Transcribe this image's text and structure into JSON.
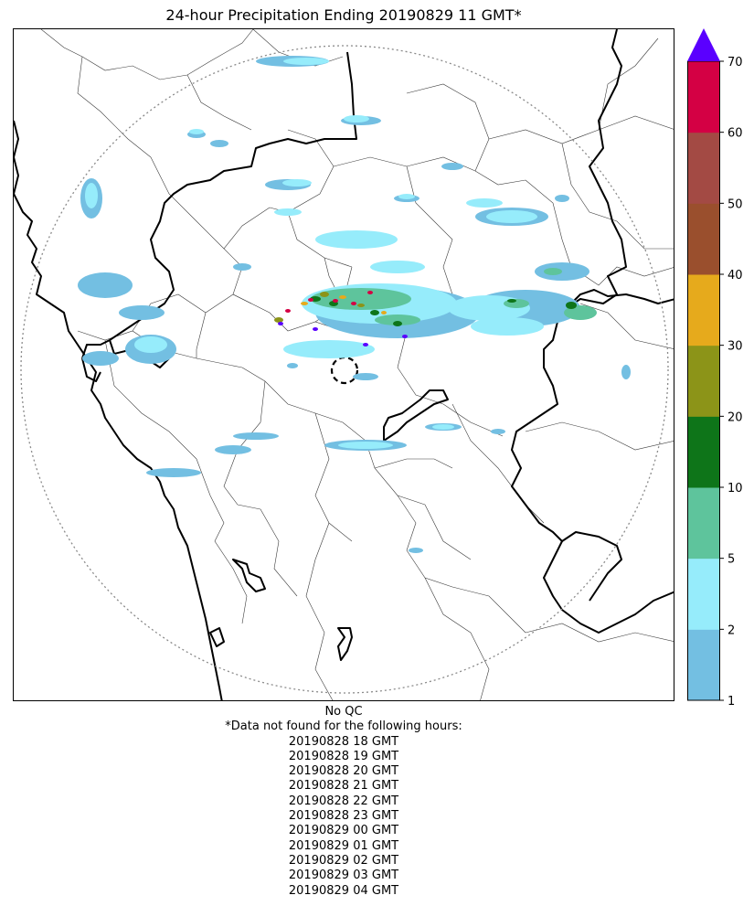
{
  "title": "24-hour Precipitation Ending 20190829 11 GMT*",
  "colors": {
    "background": "#ffffff",
    "border_thick": "#000000",
    "border_thin": "#333333",
    "range_ring": "#8a8a8a"
  },
  "legend": {
    "ticks": [
      "1",
      "2",
      "5",
      "10",
      "20",
      "30",
      "40",
      "50",
      "60",
      "70"
    ],
    "bins": [
      {
        "from": 1,
        "to": 2,
        "color": "#73bfe2"
      },
      {
        "from": 2,
        "to": 5,
        "color": "#96ecfb"
      },
      {
        "from": 5,
        "to": 10,
        "color": "#5ec49c"
      },
      {
        "from": 10,
        "to": 20,
        "color": "#0e7519"
      },
      {
        "from": 20,
        "to": 30,
        "color": "#8c9418"
      },
      {
        "from": 30,
        "to": 40,
        "color": "#e6aa1c"
      },
      {
        "from": 40,
        "to": 50,
        "color": "#9a4f2d"
      },
      {
        "from": 50,
        "to": 60,
        "color": "#a34a44"
      },
      {
        "from": 60,
        "to": 70,
        "color": "#d40044"
      }
    ],
    "overflow_color": "#5a00ff"
  },
  "notes": {
    "qc": "No QC",
    "missing_header": "*Data not found for the following hours:",
    "missing_hours": [
      "20190828 18 GMT",
      "20190828 19 GMT",
      "20190828 20 GMT",
      "20190828 21 GMT",
      "20190828 22 GMT",
      "20190828 23 GMT",
      "20190829 00 GMT",
      "20190829 01 GMT",
      "20190829 02 GMT",
      "20190829 03 GMT",
      "20190829 04 GMT"
    ]
  }
}
